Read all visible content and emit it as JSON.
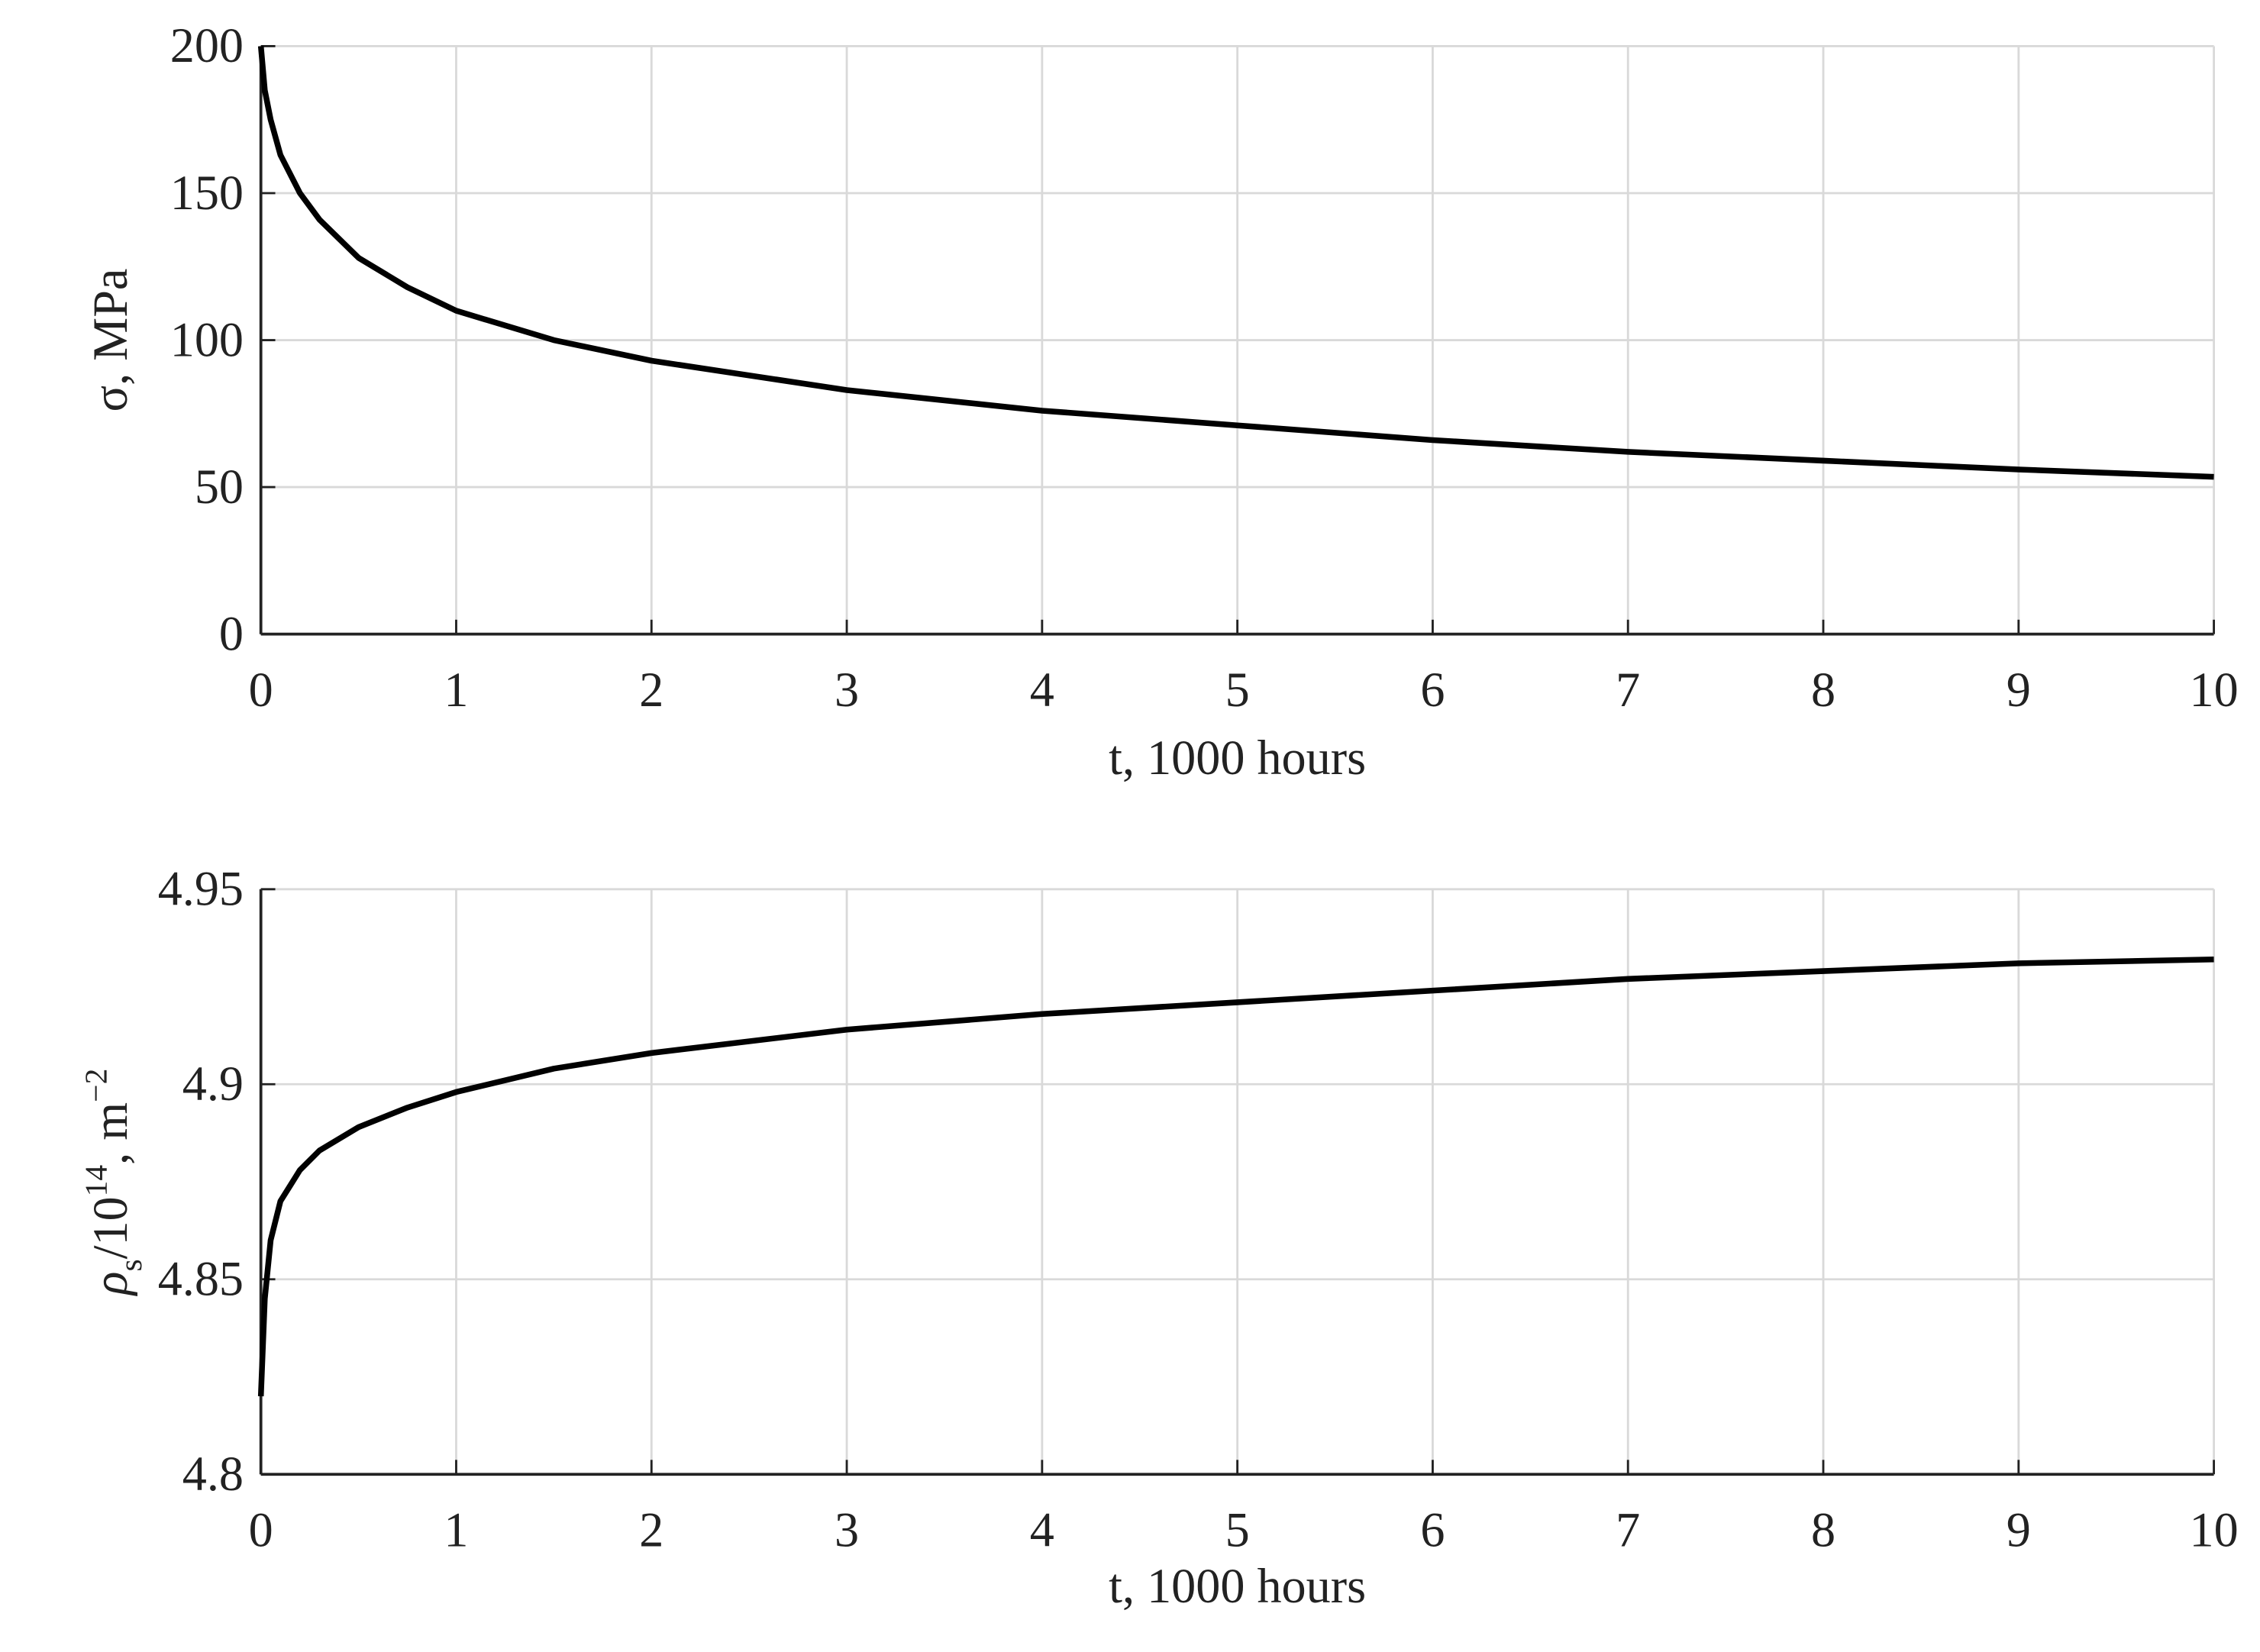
{
  "chart_data": [
    {
      "type": "line",
      "xlabel": "t, 1000 hours",
      "ylabel": "σ, MPa",
      "x": [
        0,
        0.02,
        0.05,
        0.1,
        0.2,
        0.3,
        0.5,
        0.75,
        1,
        1.5,
        2,
        3,
        4,
        5,
        6,
        7,
        8,
        9,
        10
      ],
      "series": [
        {
          "color": "#000000",
          "values": [
            200,
            185,
            175,
            163,
            150,
            141,
            128,
            118,
            110,
            100,
            93,
            83,
            76,
            71,
            66,
            62,
            59,
            56,
            53.5
          ]
        }
      ],
      "xlim": [
        0,
        10
      ],
      "xticks": [
        0,
        1,
        2,
        3,
        4,
        5,
        6,
        7,
        8,
        9,
        10
      ],
      "ylim": [
        0,
        200
      ],
      "yticks": [
        0,
        50,
        100,
        150,
        200
      ],
      "grid": true
    },
    {
      "type": "line",
      "xlabel": "t, 1000 hours",
      "ylabel": {
        "symbol": "ρ",
        "subscript": "s",
        "text": "/10",
        "exponent": "14",
        "unit": ", m",
        "unit_exponent": "−2"
      },
      "x": [
        0,
        0.02,
        0.05,
        0.1,
        0.2,
        0.3,
        0.5,
        0.75,
        1,
        1.5,
        2,
        3,
        4,
        5,
        6,
        7,
        8,
        9,
        10
      ],
      "series": [
        {
          "color": "#000000",
          "values": [
            4.82,
            4.845,
            4.86,
            4.87,
            4.878,
            4.883,
            4.889,
            4.894,
            4.898,
            4.904,
            4.908,
            4.914,
            4.918,
            4.921,
            4.924,
            4.927,
            4.929,
            4.931,
            4.932
          ]
        }
      ],
      "xlim": [
        0,
        10
      ],
      "xticks": [
        0,
        1,
        2,
        3,
        4,
        5,
        6,
        7,
        8,
        9,
        10
      ],
      "ylim": [
        4.8,
        4.95
      ],
      "yticks": [
        4.8,
        4.85,
        4.9,
        4.95
      ],
      "grid": true
    }
  ]
}
